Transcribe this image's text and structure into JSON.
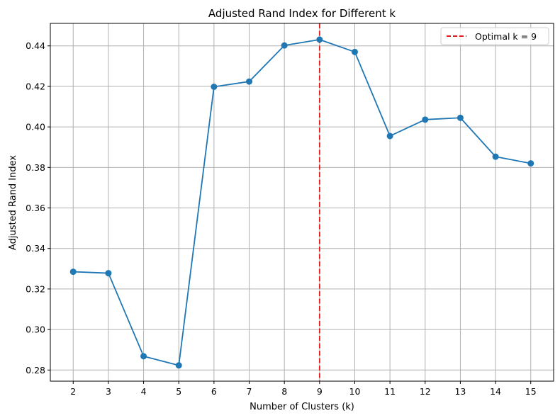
{
  "chart_data": {
    "type": "line",
    "title": "Adjusted Rand Index for Different k",
    "xlabel": "Number of Clusters (k)",
    "ylabel": "Adjusted Rand Index",
    "x": [
      2,
      3,
      4,
      5,
      6,
      7,
      8,
      9,
      10,
      11,
      12,
      13,
      14,
      15
    ],
    "series": [
      {
        "values": [
          0.3285,
          0.3278,
          0.2868,
          0.2823,
          0.4198,
          0.4224,
          0.4402,
          0.4431,
          0.437,
          0.3955,
          0.4036,
          0.4045,
          0.3853,
          0.382
        ],
        "color": "#1f77b4",
        "marker": "circle"
      }
    ],
    "reference_line": {
      "x": 9,
      "label": "Optimal k = 9",
      "color": "#e31a1c",
      "style": "dashed"
    },
    "xlim": [
      1.35,
      15.65
    ],
    "ylim": [
      0.2745,
      0.4511
    ],
    "xticks": [
      "2",
      "3",
      "4",
      "5",
      "6",
      "7",
      "8",
      "9",
      "10",
      "11",
      "12",
      "13",
      "14",
      "15"
    ],
    "yticks": [
      "0.28",
      "0.30",
      "0.32",
      "0.34",
      "0.36",
      "0.38",
      "0.40",
      "0.42",
      "0.44"
    ],
    "grid": true,
    "legend_position": "top-right"
  }
}
